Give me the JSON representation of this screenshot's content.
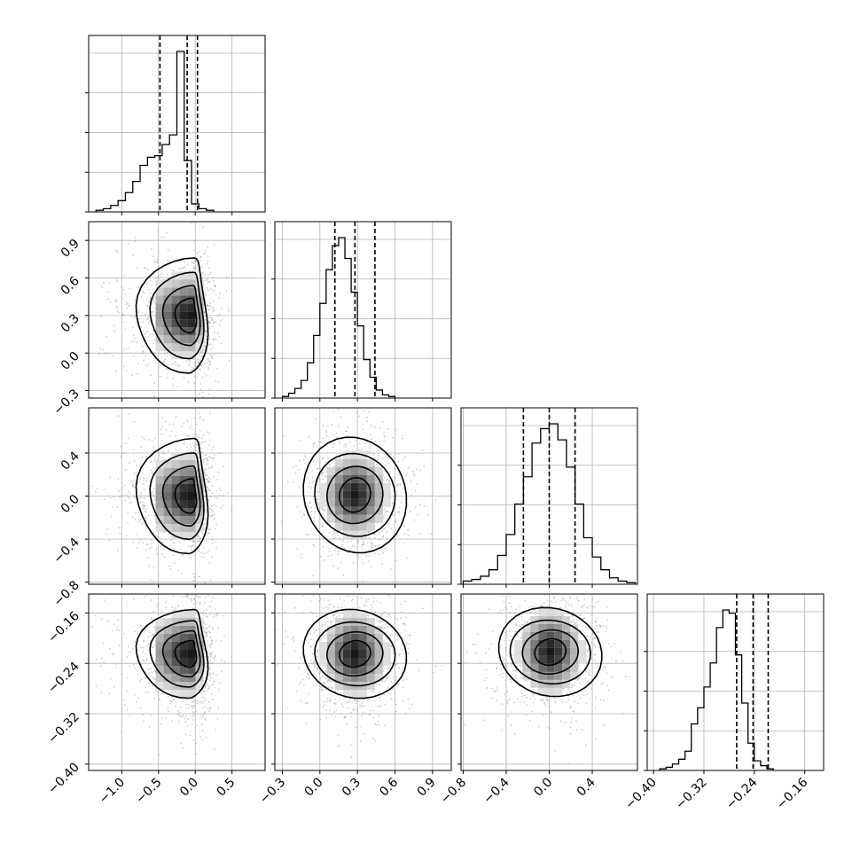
{
  "chart_data": {
    "type": "corner",
    "description_note": "",
    "grid": true,
    "params": [
      {
        "xlim": [
          -1.45,
          0.95
        ],
        "ticks": [
          -1.0,
          -0.5,
          0.0,
          0.5
        ],
        "tick_labels": [
          "−1.0",
          "−0.5",
          "0.0",
          "0.5"
        ],
        "quantiles": [
          -0.48,
          -0.11,
          0.03
        ]
      },
      {
        "xlim": [
          -0.36,
          1.05
        ],
        "ticks": [
          -0.3,
          0.0,
          0.3,
          0.6,
          0.9
        ],
        "tick_labels": [
          "−0.3",
          "0.0",
          "0.3",
          "0.6",
          "0.9"
        ],
        "quantiles": [
          0.12,
          0.28,
          0.44
        ]
      },
      {
        "xlim": [
          -0.82,
          0.82
        ],
        "ticks": [
          -0.8,
          -0.4,
          0.0,
          0.4
        ],
        "tick_labels": [
          "−0.8",
          "−0.4",
          "0.0",
          "0.4"
        ],
        "quantiles": [
          -0.24,
          0.0,
          0.24
        ]
      },
      {
        "xlim": [
          -0.41,
          -0.13
        ],
        "ticks": [
          -0.4,
          -0.32,
          -0.24,
          -0.16
        ],
        "tick_labels": [
          "−0.40",
          "−0.32",
          "−0.24",
          "−0.16"
        ],
        "quantiles": [
          -0.268,
          -0.242,
          -0.218
        ]
      }
    ],
    "diagonal_histograms": [
      {
        "bin_start": -1.35,
        "bin_width": 0.1,
        "counts": [
          0.01,
          0.02,
          0.04,
          0.07,
          0.12,
          0.19,
          0.29,
          0.34,
          0.35,
          0.42,
          0.48,
          1.0,
          0.32,
          0.05,
          0.02,
          0.01
        ]
      },
      {
        "bin_start": -0.3,
        "bin_width": 0.05,
        "counts": [
          0.01,
          0.03,
          0.06,
          0.11,
          0.22,
          0.39,
          0.59,
          0.8,
          0.95,
          1.0,
          0.87,
          0.66,
          0.45,
          0.24,
          0.13,
          0.05,
          0.02,
          0.01
        ]
      },
      {
        "bin_start": -0.8,
        "bin_width": 0.08,
        "counts": [
          0.02,
          0.03,
          0.05,
          0.09,
          0.18,
          0.31,
          0.5,
          0.67,
          0.88,
          0.97,
          1.0,
          0.9,
          0.73,
          0.5,
          0.29,
          0.17,
          0.09,
          0.04,
          0.02,
          0.01
        ]
      },
      {
        "bin_start": -0.39,
        "bin_width": 0.01,
        "counts": [
          0.01,
          0.02,
          0.04,
          0.07,
          0.12,
          0.29,
          0.39,
          0.52,
          0.67,
          0.89,
          1.0,
          0.98,
          0.72,
          0.42,
          0.17,
          0.06,
          0.03,
          0.01
        ]
      }
    ],
    "joint_centers": {
      "note": "",
      "panels": [
        {
          "row": 1,
          "col": 0,
          "x": -0.05,
          "y": 0.3
        },
        {
          "row": 2,
          "col": 0,
          "x": -0.05,
          "y": 0.0
        },
        {
          "row": 2,
          "col": 1,
          "x": 0.28,
          "y": 0.01
        },
        {
          "row": 3,
          "col": 0,
          "x": -0.05,
          "y": -0.225
        },
        {
          "row": 3,
          "col": 1,
          "x": 0.28,
          "y": -0.225
        },
        {
          "row": 3,
          "col": 2,
          "x": 0.01,
          "y": -0.222
        }
      ]
    },
    "y_axis_labels": [
      null,
      {
        "ticks": [
          -0.3,
          0.0,
          0.3,
          0.6,
          0.9
        ],
        "tick_labels": [
          "−0.3",
          "0.0",
          "0.3",
          "0.6",
          "0.9"
        ],
        "ylim": [
          -0.36,
          1.05
        ]
      },
      {
        "ticks": [
          -0.8,
          -0.4,
          0.0,
          0.4
        ],
        "tick_labels": [
          "−0.8",
          "−0.4",
          "0.0",
          "0.4"
        ],
        "ylim": [
          -0.82,
          0.82
        ]
      },
      {
        "ticks": [
          -0.4,
          -0.32,
          -0.24,
          -0.16
        ],
        "tick_labels": [
          "−0.40",
          "−0.32",
          "−0.24",
          "−0.16"
        ],
        "ylim": [
          -0.41,
          -0.13
        ]
      }
    ]
  }
}
